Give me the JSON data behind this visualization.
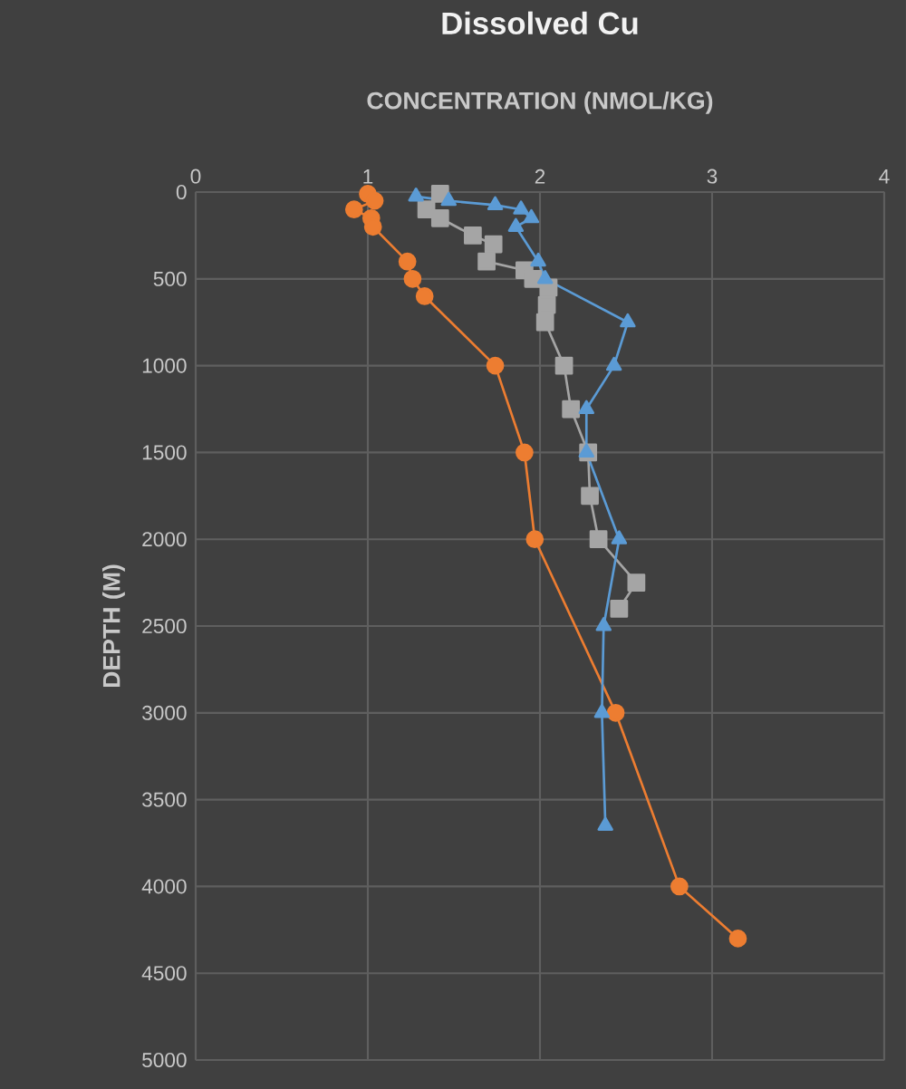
{
  "chart_data": {
    "type": "line",
    "title": "Dissolved Cu",
    "xlabel": "CONCENTRATION (NMOL/KG)",
    "ylabel": "DEPTH (M)",
    "xlim": [
      0,
      4
    ],
    "xticks": [
      0,
      1,
      2,
      3,
      4
    ],
    "ylim": [
      5000,
      0
    ],
    "yticks": [
      0,
      500,
      1000,
      1500,
      2000,
      2500,
      3000,
      3500,
      4000,
      4500,
      5000
    ],
    "grid": true,
    "line_style": "solid",
    "series": [
      {
        "color": "#ed7d31",
        "marker": "circle",
        "x": [
          1.0,
          1.04,
          0.92,
          1.02,
          1.03,
          1.23,
          1.26,
          1.33,
          1.74,
          1.91,
          1.97,
          2.44,
          2.81,
          3.15
        ],
        "values": [
          10,
          50,
          100,
          150,
          200,
          400,
          500,
          600,
          1000,
          1500,
          2000,
          3000,
          4000,
          4300
        ]
      },
      {
        "color": "#a5a5a5",
        "marker": "square",
        "x": [
          1.42,
          1.34,
          1.42,
          1.61,
          1.73,
          1.69,
          1.91,
          1.96,
          2.05,
          2.04,
          2.03,
          2.14,
          2.18,
          2.28,
          2.29,
          2.34,
          2.56,
          2.46
        ],
        "values": [
          10,
          100,
          150,
          250,
          300,
          400,
          450,
          500,
          550,
          650,
          750,
          1000,
          1250,
          1500,
          1750,
          2000,
          2250,
          2400
        ]
      },
      {
        "color": "#5b9bd5",
        "marker": "triangle",
        "x": [
          1.28,
          1.47,
          1.74,
          1.89,
          1.95,
          1.86,
          1.99,
          2.03,
          2.51,
          2.43,
          2.27,
          2.27,
          2.46,
          2.37,
          2.36,
          2.38
        ],
        "values": [
          25,
          50,
          75,
          100,
          150,
          200,
          400,
          500,
          750,
          1000,
          1250,
          1500,
          2000,
          2500,
          3000,
          3650
        ]
      }
    ]
  }
}
